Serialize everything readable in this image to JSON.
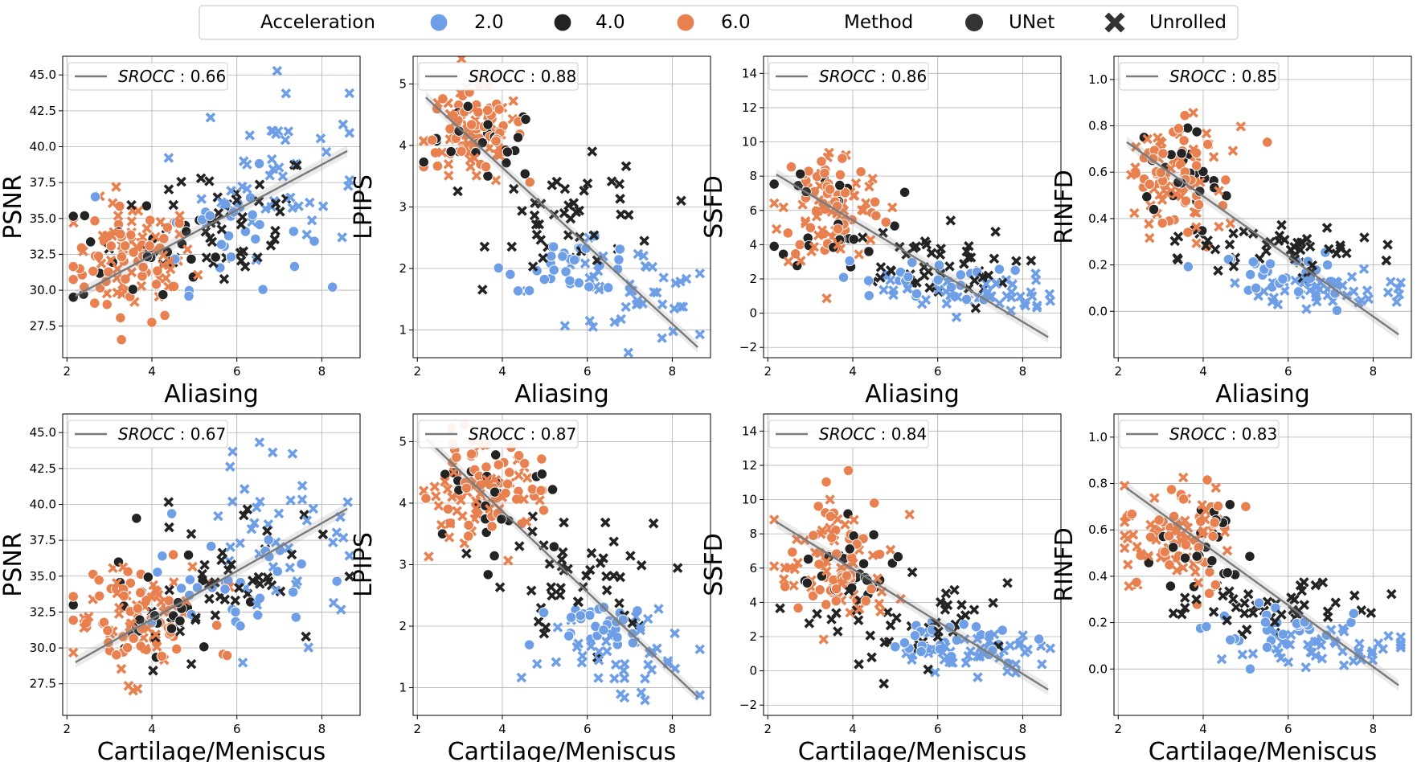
{
  "legend": {
    "acceleration_title": "Acceleration",
    "acceleration_levels": [
      {
        "label": "2.0",
        "color": "#6e9fe6"
      },
      {
        "label": "4.0",
        "color": "#232323"
      },
      {
        "label": "6.0",
        "color": "#e8804f"
      }
    ],
    "method_title": "Method",
    "methods": [
      {
        "label": "UNet",
        "marker": "circle-icon"
      },
      {
        "label": "Unrolled",
        "marker": "x-cross-icon"
      }
    ]
  },
  "chart_data": [
    {
      "type": "scatter",
      "xlabel": "Aliasing",
      "ylabel": "PSNR",
      "srocc": "0.66",
      "xticks": [
        2,
        4,
        6,
        8
      ],
      "xlim": [
        1.9,
        8.9
      ],
      "ylim": [
        25.3,
        46.3
      ],
      "yticks": [
        27.5,
        30.0,
        32.5,
        35.0,
        37.5,
        40.0,
        42.5,
        45.0
      ],
      "ytick_labels": [
        "27.5",
        "30.0",
        "32.5",
        "35.0",
        "37.5",
        "40.0",
        "42.5",
        "45.0"
      ],
      "fit": {
        "x0": 2.2,
        "y0": 29.6,
        "x1": 8.6,
        "y1": 39.7
      },
      "clusters": [
        {
          "method": "UNet",
          "accel": "6.0",
          "cx": 3.5,
          "cy": 31.8,
          "sx": 0.7,
          "sy": 2.0,
          "n": 50
        },
        {
          "method": "Unrolled",
          "accel": "6.0",
          "cx": 3.6,
          "cy": 32.2,
          "sx": 0.7,
          "sy": 2.0,
          "n": 50
        },
        {
          "method": "UNet",
          "accel": "4.0",
          "cx": 3.8,
          "cy": 32.8,
          "sx": 0.9,
          "sy": 2.2,
          "n": 25
        },
        {
          "method": "Unrolled",
          "accel": "4.0",
          "cx": 5.6,
          "cy": 35.0,
          "sx": 1.2,
          "sy": 2.5,
          "n": 45
        },
        {
          "method": "UNet",
          "accel": "2.0",
          "cx": 5.8,
          "cy": 34.2,
          "sx": 0.9,
          "sy": 2.0,
          "n": 30
        },
        {
          "method": "Unrolled",
          "accel": "2.0",
          "cx": 7.0,
          "cy": 38.5,
          "sx": 0.9,
          "sy": 3.0,
          "n": 45
        }
      ]
    },
    {
      "type": "scatter",
      "xlabel": "Aliasing",
      "ylabel": "LPIPS",
      "srocc": "0.88",
      "xticks": [
        2,
        4,
        6,
        8
      ],
      "xlim": [
        1.9,
        8.9
      ],
      "ylim": [
        0.55,
        5.45
      ],
      "yticks": [
        1,
        2,
        3,
        4,
        5
      ],
      "ytick_labels": [
        "1",
        "2",
        "3",
        "4",
        "5"
      ],
      "fit": {
        "x0": 2.2,
        "y0": 4.78,
        "x1": 8.6,
        "y1": 0.72
      },
      "clusters": [
        {
          "method": "UNet",
          "accel": "6.0",
          "cx": 3.3,
          "cy": 4.3,
          "sx": 0.6,
          "sy": 0.35,
          "n": 50
        },
        {
          "method": "Unrolled",
          "accel": "6.0",
          "cx": 3.3,
          "cy": 4.1,
          "sx": 0.6,
          "sy": 0.4,
          "n": 50
        },
        {
          "method": "UNet",
          "accel": "4.0",
          "cx": 3.5,
          "cy": 4.0,
          "sx": 0.7,
          "sy": 0.3,
          "n": 25
        },
        {
          "method": "Unrolled",
          "accel": "4.0",
          "cx": 5.8,
          "cy": 2.8,
          "sx": 1.0,
          "sy": 0.45,
          "n": 45
        },
        {
          "method": "UNet",
          "accel": "2.0",
          "cx": 5.7,
          "cy": 2.05,
          "sx": 0.8,
          "sy": 0.2,
          "n": 30
        },
        {
          "method": "Unrolled",
          "accel": "2.0",
          "cx": 6.9,
          "cy": 1.6,
          "sx": 1.0,
          "sy": 0.4,
          "n": 45
        }
      ]
    },
    {
      "type": "scatter",
      "xlabel": "Aliasing",
      "ylabel": "SSFD",
      "srocc": "0.86",
      "xticks": [
        2,
        4,
        6,
        8
      ],
      "xlim": [
        1.9,
        8.9
      ],
      "ylim": [
        -2.6,
        15.0
      ],
      "yticks": [
        -2,
        0,
        2,
        4,
        6,
        8,
        10,
        12,
        14
      ],
      "ytick_labels": [
        "−2",
        "0",
        "2",
        "4",
        "6",
        "8",
        "10",
        "12",
        "14"
      ],
      "fit": {
        "x0": 2.2,
        "y0": 8.1,
        "x1": 8.6,
        "y1": -1.4
      },
      "clusters": [
        {
          "method": "UNet",
          "accel": "6.0",
          "cx": 3.5,
          "cy": 6.5,
          "sx": 0.6,
          "sy": 1.9,
          "n": 45
        },
        {
          "method": "Unrolled",
          "accel": "6.0",
          "cx": 3.5,
          "cy": 6.0,
          "sx": 0.6,
          "sy": 1.8,
          "n": 50
        },
        {
          "method": "UNet",
          "accel": "4.0",
          "cx": 3.7,
          "cy": 5.8,
          "sx": 0.7,
          "sy": 1.6,
          "n": 25
        },
        {
          "method": "Unrolled",
          "accel": "4.0",
          "cx": 5.6,
          "cy": 2.6,
          "sx": 1.1,
          "sy": 1.2,
          "n": 45
        },
        {
          "method": "UNet",
          "accel": "2.0",
          "cx": 5.6,
          "cy": 1.9,
          "sx": 1.0,
          "sy": 0.6,
          "n": 30
        },
        {
          "method": "Unrolled",
          "accel": "2.0",
          "cx": 6.9,
          "cy": 1.1,
          "sx": 1.0,
          "sy": 0.6,
          "n": 45
        }
      ]
    },
    {
      "type": "scatter",
      "xlabel": "Aliasing",
      "ylabel": "RINFD",
      "srocc": "0.85",
      "xticks": [
        2,
        4,
        6,
        8
      ],
      "xlim": [
        1.9,
        8.9
      ],
      "ylim": [
        -0.2,
        1.1
      ],
      "yticks": [
        0.0,
        0.2,
        0.4,
        0.6,
        0.8,
        1.0
      ],
      "ytick_labels": [
        "0.0",
        "0.2",
        "0.4",
        "0.6",
        "0.8",
        "1.0"
      ],
      "fit": {
        "x0": 2.2,
        "y0": 0.73,
        "x1": 8.6,
        "y1": -0.1
      },
      "clusters": [
        {
          "method": "UNet",
          "accel": "6.0",
          "cx": 3.4,
          "cy": 0.58,
          "sx": 0.6,
          "sy": 0.12,
          "n": 45
        },
        {
          "method": "Unrolled",
          "accel": "6.0",
          "cx": 3.4,
          "cy": 0.57,
          "sx": 0.6,
          "sy": 0.12,
          "n": 50
        },
        {
          "method": "UNet",
          "accel": "4.0",
          "cx": 3.6,
          "cy": 0.55,
          "sx": 0.7,
          "sy": 0.12,
          "n": 25
        },
        {
          "method": "Unrolled",
          "accel": "4.0",
          "cx": 5.6,
          "cy": 0.27,
          "sx": 1.1,
          "sy": 0.06,
          "n": 45
        },
        {
          "method": "UNet",
          "accel": "2.0",
          "cx": 5.6,
          "cy": 0.17,
          "sx": 0.9,
          "sy": 0.05,
          "n": 30
        },
        {
          "method": "Unrolled",
          "accel": "2.0",
          "cx": 6.9,
          "cy": 0.09,
          "sx": 1.0,
          "sy": 0.04,
          "n": 45
        }
      ]
    },
    {
      "type": "scatter",
      "xlabel": "Cartilage/Meniscus",
      "ylabel": "PSNR",
      "srocc": "0.67",
      "xticks": [
        2,
        4,
        6,
        8
      ],
      "xlim": [
        1.9,
        8.9
      ],
      "ylim": [
        25.3,
        46.3
      ],
      "yticks": [
        27.5,
        30.0,
        32.5,
        35.0,
        37.5,
        40.0,
        42.5,
        45.0
      ],
      "ytick_labels": [
        "27.5",
        "30.0",
        "32.5",
        "35.0",
        "37.5",
        "40.0",
        "42.5",
        "45.0"
      ],
      "fit": {
        "x0": 2.2,
        "y0": 29.0,
        "x1": 8.6,
        "y1": 39.7
      },
      "clusters": [
        {
          "method": "UNet",
          "accel": "6.0",
          "cx": 3.6,
          "cy": 31.8,
          "sx": 0.8,
          "sy": 2.0,
          "n": 50
        },
        {
          "method": "Unrolled",
          "accel": "6.0",
          "cx": 3.5,
          "cy": 32.3,
          "sx": 0.8,
          "sy": 2.0,
          "n": 50
        },
        {
          "method": "UNet",
          "accel": "4.0",
          "cx": 4.0,
          "cy": 32.5,
          "sx": 0.9,
          "sy": 2.2,
          "n": 25
        },
        {
          "method": "Unrolled",
          "accel": "4.0",
          "cx": 5.6,
          "cy": 34.5,
          "sx": 1.3,
          "sy": 2.5,
          "n": 45
        },
        {
          "method": "UNet",
          "accel": "2.0",
          "cx": 6.0,
          "cy": 34.5,
          "sx": 0.9,
          "sy": 2.2,
          "n": 30
        },
        {
          "method": "Unrolled",
          "accel": "2.0",
          "cx": 7.2,
          "cy": 38.0,
          "sx": 0.9,
          "sy": 3.0,
          "n": 45
        }
      ]
    },
    {
      "type": "scatter",
      "xlabel": "Cartilage/Meniscus",
      "ylabel": "LPIPS",
      "srocc": "0.87",
      "xticks": [
        2,
        4,
        6,
        8
      ],
      "xlim": [
        1.9,
        8.9
      ],
      "ylim": [
        0.55,
        5.45
      ],
      "yticks": [
        1,
        2,
        3,
        4,
        5
      ],
      "ytick_labels": [
        "1",
        "2",
        "3",
        "4",
        "5"
      ],
      "fit": {
        "x0": 2.2,
        "y0": 5.05,
        "x1": 8.6,
        "y1": 0.85
      },
      "clusters": [
        {
          "method": "UNet",
          "accel": "6.0",
          "cx": 3.5,
          "cy": 4.3,
          "sx": 0.7,
          "sy": 0.35,
          "n": 50
        },
        {
          "method": "Unrolled",
          "accel": "6.0",
          "cx": 3.4,
          "cy": 4.1,
          "sx": 0.7,
          "sy": 0.4,
          "n": 50
        },
        {
          "method": "UNet",
          "accel": "4.0",
          "cx": 3.9,
          "cy": 4.0,
          "sx": 0.7,
          "sy": 0.35,
          "n": 25
        },
        {
          "method": "Unrolled",
          "accel": "4.0",
          "cx": 5.8,
          "cy": 2.8,
          "sx": 1.1,
          "sy": 0.5,
          "n": 45
        },
        {
          "method": "UNet",
          "accel": "2.0",
          "cx": 6.3,
          "cy": 2.05,
          "sx": 0.7,
          "sy": 0.2,
          "n": 30
        },
        {
          "method": "Unrolled",
          "accel": "2.0",
          "cx": 7.0,
          "cy": 1.6,
          "sx": 1.0,
          "sy": 0.4,
          "n": 45
        }
      ]
    },
    {
      "type": "scatter",
      "xlabel": "Cartilage/Meniscus",
      "ylabel": "SSFD",
      "srocc": "0.84",
      "xticks": [
        2,
        4,
        6,
        8
      ],
      "xlim": [
        1.9,
        8.9
      ],
      "ylim": [
        -2.6,
        15.0
      ],
      "yticks": [
        -2,
        0,
        2,
        4,
        6,
        8,
        10,
        12,
        14
      ],
      "ytick_labels": [
        "−2",
        "0",
        "2",
        "4",
        "6",
        "8",
        "10",
        "12",
        "14"
      ],
      "fit": {
        "x0": 2.2,
        "y0": 8.7,
        "x1": 8.6,
        "y1": -1.1
      },
      "clusters": [
        {
          "method": "UNet",
          "accel": "6.0",
          "cx": 3.7,
          "cy": 6.5,
          "sx": 0.6,
          "sy": 1.9,
          "n": 45
        },
        {
          "method": "Unrolled",
          "accel": "6.0",
          "cx": 3.6,
          "cy": 6.0,
          "sx": 0.7,
          "sy": 1.8,
          "n": 50
        },
        {
          "method": "UNet",
          "accel": "4.0",
          "cx": 4.0,
          "cy": 5.8,
          "sx": 0.7,
          "sy": 1.6,
          "n": 25
        },
        {
          "method": "Unrolled",
          "accel": "4.0",
          "cx": 5.6,
          "cy": 2.6,
          "sx": 1.1,
          "sy": 1.2,
          "n": 45
        },
        {
          "method": "UNet",
          "accel": "2.0",
          "cx": 6.2,
          "cy": 1.9,
          "sx": 0.8,
          "sy": 0.6,
          "n": 30
        },
        {
          "method": "Unrolled",
          "accel": "2.0",
          "cx": 6.9,
          "cy": 1.1,
          "sx": 1.0,
          "sy": 0.6,
          "n": 45
        }
      ]
    },
    {
      "type": "scatter",
      "xlabel": "Cartilage/Meniscus",
      "ylabel": "RINFD",
      "srocc": "0.83",
      "xticks": [
        2,
        4,
        6,
        8
      ],
      "xlim": [
        1.9,
        8.9
      ],
      "ylim": [
        -0.2,
        1.1
      ],
      "yticks": [
        0.0,
        0.2,
        0.4,
        0.6,
        0.8,
        1.0
      ],
      "ytick_labels": [
        "0.0",
        "0.2",
        "0.4",
        "0.6",
        "0.8",
        "1.0"
      ],
      "fit": {
        "x0": 2.2,
        "y0": 0.78,
        "x1": 8.6,
        "y1": -0.07
      },
      "clusters": [
        {
          "method": "UNet",
          "accel": "6.0",
          "cx": 3.5,
          "cy": 0.58,
          "sx": 0.6,
          "sy": 0.12,
          "n": 45
        },
        {
          "method": "Unrolled",
          "accel": "6.0",
          "cx": 3.5,
          "cy": 0.58,
          "sx": 0.7,
          "sy": 0.12,
          "n": 50
        },
        {
          "method": "UNet",
          "accel": "4.0",
          "cx": 4.0,
          "cy": 0.55,
          "sx": 0.7,
          "sy": 0.12,
          "n": 25
        },
        {
          "method": "Unrolled",
          "accel": "4.0",
          "cx": 5.7,
          "cy": 0.27,
          "sx": 1.1,
          "sy": 0.06,
          "n": 45
        },
        {
          "method": "UNet",
          "accel": "2.0",
          "cx": 6.0,
          "cy": 0.17,
          "sx": 0.8,
          "sy": 0.05,
          "n": 30
        },
        {
          "method": "Unrolled",
          "accel": "2.0",
          "cx": 6.9,
          "cy": 0.09,
          "sx": 1.0,
          "sy": 0.04,
          "n": 45
        }
      ]
    }
  ]
}
